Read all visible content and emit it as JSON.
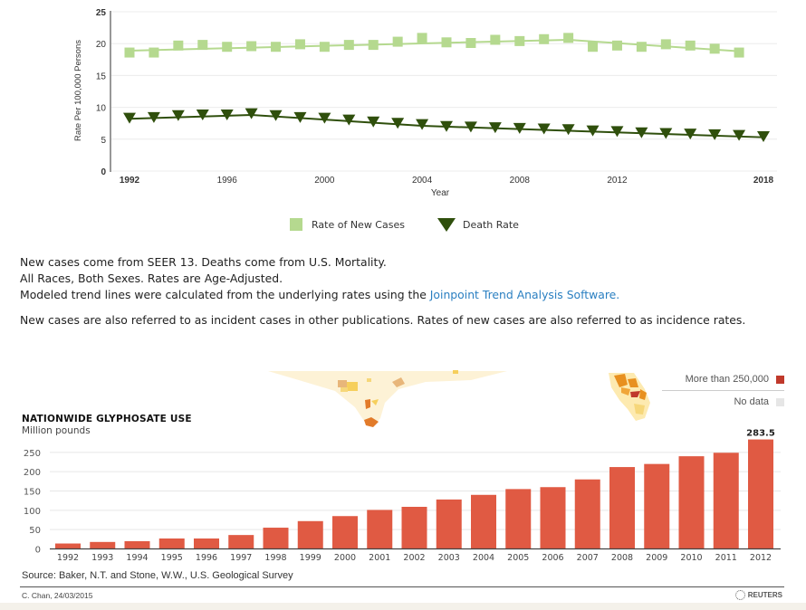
{
  "chart_data": [
    {
      "type": "line",
      "title": "",
      "xlabel": "Year",
      "ylabel": "Rate Per 100,000 Persons",
      "xlim": [
        1992,
        2018
      ],
      "ylim": [
        0,
        25
      ],
      "yticks": [
        "0",
        "5",
        "10",
        "15",
        "20",
        "25"
      ],
      "xticks": [
        "1992",
        "1996",
        "2000",
        "2004",
        "2008",
        "2012",
        "2018"
      ],
      "grid": true,
      "legend_position": "bottom-center",
      "series": [
        {
          "name": "Rate of New Cases",
          "marker": "square",
          "color": "#b5d98f",
          "x": [
            1992,
            1993,
            1994,
            1995,
            1996,
            1997,
            1998,
            1999,
            2000,
            2001,
            2002,
            2003,
            2004,
            2005,
            2006,
            2007,
            2008,
            2009,
            2010,
            2011,
            2012,
            2013,
            2014,
            2015,
            2016,
            2017
          ],
          "values": [
            18.6,
            18.6,
            19.7,
            19.8,
            19.5,
            19.6,
            19.5,
            19.9,
            19.5,
            19.8,
            19.8,
            20.3,
            20.9,
            20.2,
            20.1,
            20.6,
            20.4,
            20.7,
            20.9,
            19.5,
            19.7,
            19.5,
            19.9,
            19.7,
            19.2,
            18.6
          ],
          "trend": [
            [
              1992,
              18.9
            ],
            [
              2010,
              20.6
            ],
            [
              2017,
              18.8
            ]
          ]
        },
        {
          "name": "Death Rate",
          "marker": "triangle-down",
          "color": "#2f4f0c",
          "x": [
            1992,
            1993,
            1994,
            1995,
            1996,
            1997,
            1998,
            1999,
            2000,
            2001,
            2002,
            2003,
            2004,
            2005,
            2006,
            2007,
            2008,
            2009,
            2010,
            2011,
            2012,
            2013,
            2014,
            2015,
            2016,
            2017,
            2018
          ],
          "values": [
            8.3,
            8.4,
            8.7,
            8.8,
            8.8,
            9.0,
            8.7,
            8.4,
            8.3,
            8.0,
            7.7,
            7.5,
            7.3,
            7.0,
            6.9,
            6.8,
            6.7,
            6.6,
            6.5,
            6.3,
            6.2,
            6.0,
            5.9,
            5.8,
            5.7,
            5.6,
            5.4
          ],
          "trend": [
            [
              1992,
              8.2
            ],
            [
              1997,
              8.8
            ],
            [
              2004,
              7.1
            ],
            [
              2018,
              5.3
            ]
          ]
        }
      ]
    },
    {
      "type": "bar",
      "title": "NATIONWIDE GLYPHOSATE USE",
      "subtitle": "Million pounds",
      "xlabel": "",
      "ylabel": "",
      "ylim": [
        0,
        290
      ],
      "yticks": [
        "0",
        "50",
        "100",
        "150",
        "200",
        "250"
      ],
      "categories": [
        "1992",
        "1993",
        "1994",
        "1995",
        "1996",
        "1997",
        "1998",
        "1999",
        "2000",
        "2001",
        "2002",
        "2003",
        "2004",
        "2005",
        "2006",
        "2007",
        "2008",
        "2009",
        "2010",
        "2011",
        "2012"
      ],
      "values": [
        14,
        18,
        20,
        27,
        27,
        36,
        55,
        72,
        85,
        101,
        109,
        128,
        140,
        155,
        160,
        180,
        212,
        220,
        240,
        249,
        283.5
      ],
      "data_labels": {
        "2012": "283.5"
      },
      "color": "#e05a43",
      "grid": true
    }
  ],
  "legend": {
    "new_cases_label": "Rate of New Cases",
    "death_rate_label": "Death Rate"
  },
  "notes": {
    "line1": "New cases come from SEER 13. Deaths come from U.S. Mortality.",
    "line2": "All Races, Both Sexes. Rates are Age-Adjusted.",
    "line3_prefix": "Modeled trend lines were calculated from the underlying rates using the ",
    "line3_link": "Joinpoint Trend Analysis Software.",
    "line4": "New cases are also referred to as incident cases in other publications. Rates of new cases are also referred to as incidence rates."
  },
  "glyphosate": {
    "title": "NATIONWIDE GLYPHOSATE USE",
    "subtitle": "Million pounds",
    "map_legend": [
      {
        "label": "More than 250,000",
        "color": "#c0392b"
      },
      {
        "label": "No data",
        "color": "#e6e6e6"
      }
    ],
    "source": "Source: Baker, N.T. and Stone, W.W., U.S. Geological Survey",
    "credit": "C. Chan, 24/03/2015",
    "brand": "REUTERS"
  }
}
